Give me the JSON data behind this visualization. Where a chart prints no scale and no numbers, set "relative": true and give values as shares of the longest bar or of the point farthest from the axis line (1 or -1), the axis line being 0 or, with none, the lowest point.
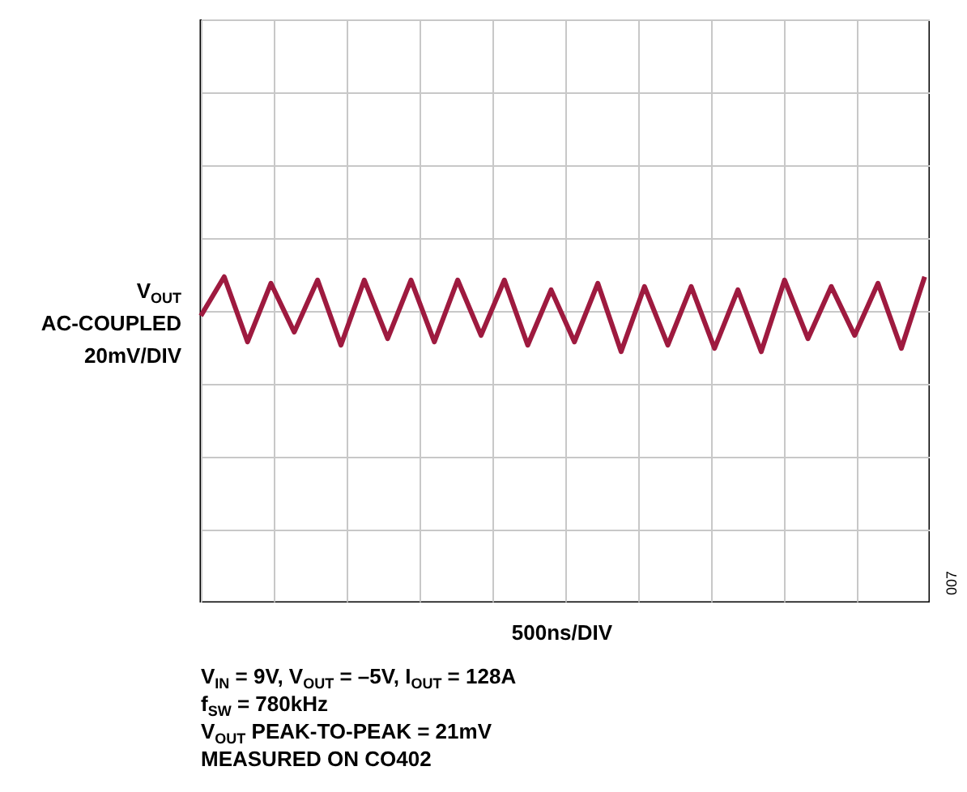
{
  "chart_data": {
    "type": "line",
    "relative": true,
    "grid": true,
    "line_style": "solid",
    "marker": "none",
    "ylabel": "V$_{OUT}$\nAC-COUPLED\n20mV/DIV",
    "categories": [
      null,
      null,
      null,
      null,
      null,
      null,
      null,
      null,
      null,
      null,
      null,
      null,
      null,
      null,
      null,
      null,
      null,
      null,
      null,
      null,
      null,
      null,
      null,
      null,
      null,
      null,
      null,
      null,
      null,
      null,
      null,
      null
    ],
    "series": [
      {
        "color": "#9e1a3f",
        "values": [
          0.88,
          1.0,
          0.8,
          0.98,
          0.83,
          0.99,
          0.79,
          0.99,
          0.81,
          0.99,
          0.8,
          0.99,
          0.82,
          0.99,
          0.79,
          0.96,
          0.8,
          0.98,
          0.77,
          0.97,
          0.79,
          0.97,
          0.78,
          0.96,
          0.77,
          0.99,
          0.81,
          0.97,
          0.82,
          0.98,
          0.78,
          1.0
        ]
      }
    ],
    "annotations": [
      "500ns/DIV",
      "V$_{IN}$ = 9V, V$_{OUT}$ = –5V, I$_{OUT}$ = 128A",
      "f$_{SW}$ = 780kHz",
      "V$_{OUT}$ PEAK-TO-PEAK = 21mV",
      "MEASURED ON CO402",
      "007"
    ]
  }
}
